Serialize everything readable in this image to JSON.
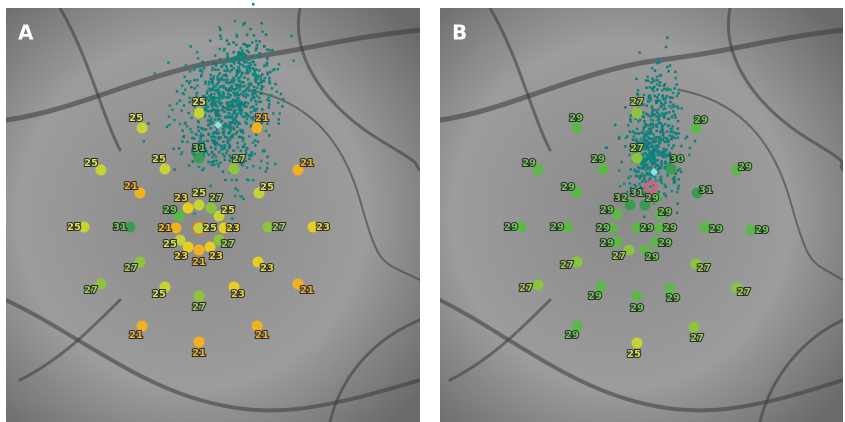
{
  "panels": [
    {
      "label": "A",
      "points": [
        25,
        25,
        21,
        25,
        25,
        31,
        27,
        21,
        21,
        25,
        25,
        23,
        27,
        29,
        25,
        25,
        31,
        21,
        25,
        23,
        27,
        23,
        25,
        27,
        23,
        23,
        21,
        27,
        23,
        27,
        25,
        27,
        23,
        21,
        21,
        21,
        21
      ]
    },
    {
      "label": "B",
      "points": [
        27,
        29,
        29,
        29,
        29,
        27,
        30,
        29,
        29,
        31,
        32,
        31,
        29,
        29,
        29,
        29,
        29,
        29,
        29,
        29,
        29,
        29,
        29,
        29,
        27,
        29,
        27,
        27,
        27,
        29,
        29,
        29,
        27,
        29,
        27,
        25
      ]
    }
  ]
}
